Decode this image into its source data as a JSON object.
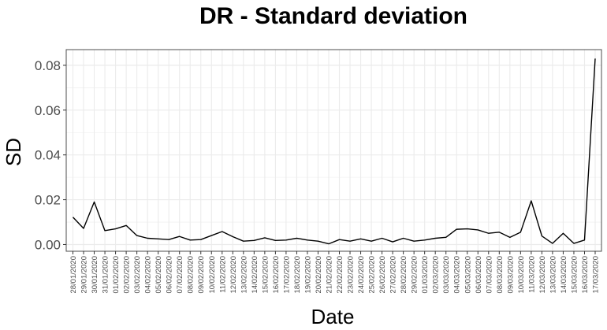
{
  "chart_data": {
    "type": "line",
    "title": "DR - Standard deviation",
    "xlabel": "Date",
    "ylabel": "SD",
    "ylim": [
      -0.003,
      0.087
    ],
    "y_ticks": [
      0.0,
      0.02,
      0.04,
      0.06,
      0.08
    ],
    "y_tick_labels": [
      "0.00",
      "0.02",
      "0.04",
      "0.06",
      "0.08"
    ],
    "grid": true,
    "line_color": "#000000",
    "grid_color": "#ebebeb",
    "panel_border_color": "#4d4d4d",
    "categories": [
      "28/01/2020",
      "29/01/2020",
      "30/01/2020",
      "31/01/2020",
      "01/02/2020",
      "02/02/2020",
      "03/02/2020",
      "04/02/2020",
      "05/02/2020",
      "06/02/2020",
      "07/02/2020",
      "08/02/2020",
      "09/02/2020",
      "10/02/2020",
      "11/02/2020",
      "12/02/2020",
      "13/02/2020",
      "14/02/2020",
      "15/02/2020",
      "16/02/2020",
      "17/02/2020",
      "18/02/2020",
      "19/02/2020",
      "20/02/2020",
      "21/02/2020",
      "22/02/2020",
      "23/02/2020",
      "24/02/2020",
      "25/02/2020",
      "26/02/2020",
      "27/02/2020",
      "28/02/2020",
      "29/02/2020",
      "01/03/2020",
      "02/03/2020",
      "03/03/2020",
      "04/03/2020",
      "05/03/2020",
      "06/03/2020",
      "07/03/2020",
      "08/03/2020",
      "09/03/2020",
      "10/03/2020",
      "11/03/2020",
      "12/03/2020",
      "13/03/2020",
      "14/03/2020",
      "15/03/2020",
      "16/03/2020",
      "17/03/2020"
    ],
    "values": [
      0.0122,
      0.0072,
      0.019,
      0.0062,
      0.007,
      0.0085,
      0.004,
      0.0028,
      0.0025,
      0.0022,
      0.0036,
      0.002,
      0.0022,
      0.004,
      0.0058,
      0.0035,
      0.0015,
      0.0018,
      0.003,
      0.0018,
      0.002,
      0.0028,
      0.002,
      0.0015,
      0.0003,
      0.0022,
      0.0015,
      0.0025,
      0.0015,
      0.0028,
      0.0012,
      0.0028,
      0.0015,
      0.002,
      0.0028,
      0.0032,
      0.0068,
      0.007,
      0.0065,
      0.005,
      0.0055,
      0.0032,
      0.0055,
      0.0195,
      0.0038,
      0.0005,
      0.005,
      0.0005,
      0.002,
      0.083
    ]
  }
}
